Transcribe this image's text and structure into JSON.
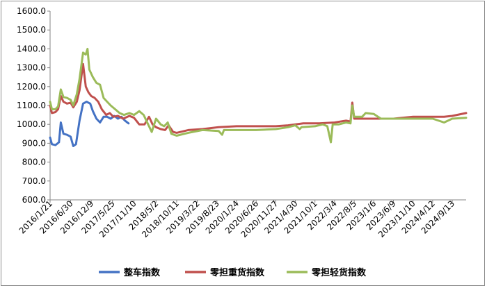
{
  "chart_data": {
    "type": "line",
    "title": "",
    "xlabel": "",
    "ylabel": "",
    "ylim": [
      600,
      1600
    ],
    "y_ticks": [
      "600.0",
      "700.0",
      "800.0",
      "900.0",
      "1000.0",
      "1100.0",
      "1200.0",
      "1300.0",
      "1400.0",
      "1500.0",
      "1600.0"
    ],
    "x_ticks": [
      "2016/1/21",
      "2016/6/30",
      "2016/12/9",
      "2017/5/25",
      "2017/11/10",
      "2018/5/2",
      "2018/10/11",
      "2019/3/22",
      "2019/8/23",
      "2020/1/24",
      "2020/6/26",
      "2020/11/27",
      "2021/4/30",
      "2021/10/1",
      "2022/3/4",
      "2022/8/5",
      "2023/1/6",
      "2023/6/9",
      "2023/11/10",
      "2024/4/12",
      "2024/9/13"
    ],
    "grid": false,
    "legend_position": "bottom",
    "x_domain": [
      "2016/1/21",
      "2024/12/31"
    ],
    "series": [
      {
        "name": "整车指数",
        "color": "#4472c4",
        "points": [
          [
            "2016/1/21",
            930
          ],
          [
            "2016/2/4",
            895
          ],
          [
            "2016/3/3",
            890
          ],
          [
            "2016/3/31",
            905
          ],
          [
            "2016/4/14",
            1010
          ],
          [
            "2016/5/5",
            950
          ],
          [
            "2016/6/2",
            945
          ],
          [
            "2016/6/30",
            935
          ],
          [
            "2016/7/21",
            885
          ],
          [
            "2016/8/11",
            895
          ],
          [
            "2016/9/8",
            1020
          ],
          [
            "2016/10/6",
            1110
          ],
          [
            "2016/11/3",
            1120
          ],
          [
            "2016/12/1",
            1110
          ],
          [
            "2016/12/22",
            1070
          ],
          [
            "2017/1/19",
            1030
          ],
          [
            "2017/2/16",
            1010
          ],
          [
            "2017/3/16",
            1040
          ],
          [
            "2017/4/13",
            1040
          ],
          [
            "2017/5/11",
            1030
          ],
          [
            "2017/6/8",
            1045
          ],
          [
            "2017/7/6",
            1030
          ],
          [
            "2017/8/3",
            1040
          ],
          [
            "2017/8/31",
            1020
          ],
          [
            "2017/9/28",
            1005
          ]
        ]
      },
      {
        "name": "零担重货指数",
        "color": "#c0504d",
        "points": [
          [
            "2016/1/21",
            1100
          ],
          [
            "2016/2/4",
            1060
          ],
          [
            "2016/3/3",
            1065
          ],
          [
            "2016/3/24",
            1080
          ],
          [
            "2016/4/14",
            1150
          ],
          [
            "2016/5/5",
            1120
          ],
          [
            "2016/6/2",
            1110
          ],
          [
            "2016/6/30",
            1115
          ],
          [
            "2016/7/21",
            1090
          ],
          [
            "2016/8/18",
            1120
          ],
          [
            "2016/9/8",
            1180
          ],
          [
            "2016/10/6",
            1320
          ],
          [
            "2016/10/27",
            1200
          ],
          [
            "2016/11/17",
            1170
          ],
          [
            "2016/12/9",
            1150
          ],
          [
            "2017/1/5",
            1140
          ],
          [
            "2017/2/2",
            1120
          ],
          [
            "2017/3/2",
            1080
          ],
          [
            "2017/4/6",
            1050
          ],
          [
            "2017/5/4",
            1060
          ],
          [
            "2017/6/1",
            1040
          ],
          [
            "2017/7/6",
            1045
          ],
          [
            "2017/8/17",
            1030
          ],
          [
            "2017/10/5",
            1045
          ],
          [
            "2017/11/10",
            1035
          ],
          [
            "2017/12/21",
            1000
          ],
          [
            "2018/2/1",
            1000
          ],
          [
            "2018/3/8",
            1040
          ],
          [
            "2018/4/5",
            1000
          ],
          [
            "2018/5/2",
            985
          ],
          [
            "2018/6/7",
            975
          ],
          [
            "2018/7/12",
            970
          ],
          [
            "2018/8/9",
            995
          ],
          [
            "2018/9/13",
            960
          ],
          [
            "2018/10/11",
            955
          ],
          [
            "2019/1/10",
            970
          ],
          [
            "2019/5/2",
            975
          ],
          [
            "2019/9/5",
            985
          ],
          [
            "2020/1/24",
            990
          ],
          [
            "2020/6/26",
            990
          ],
          [
            "2020/11/27",
            990
          ],
          [
            "2021/3/4",
            995
          ],
          [
            "2021/7/1",
            1005
          ],
          [
            "2021/11/4",
            1005
          ],
          [
            "2022/3/4",
            1010
          ],
          [
            "2022/6/2",
            1020
          ],
          [
            "2022/7/7",
            1015
          ],
          [
            "2022/7/21",
            1115
          ],
          [
            "2022/8/5",
            1030
          ],
          [
            "2022/11/3",
            1030
          ],
          [
            "2023/1/6",
            1030
          ],
          [
            "2023/6/9",
            1030
          ],
          [
            "2023/11/10",
            1040
          ],
          [
            "2024/4/12",
            1040
          ],
          [
            "2024/7/11",
            1040
          ],
          [
            "2024/9/13",
            1045
          ],
          [
            "2024/12/31",
            1060
          ]
        ]
      },
      {
        "name": "零担轻货指数",
        "color": "#9bbb59",
        "points": [
          [
            "2016/1/21",
            1120
          ],
          [
            "2016/2/4",
            1080
          ],
          [
            "2016/3/3",
            1080
          ],
          [
            "2016/3/24",
            1095
          ],
          [
            "2016/4/14",
            1185
          ],
          [
            "2016/5/5",
            1145
          ],
          [
            "2016/6/2",
            1140
          ],
          [
            "2016/6/30",
            1130
          ],
          [
            "2016/7/21",
            1100
          ],
          [
            "2016/8/18",
            1160
          ],
          [
            "2016/9/8",
            1240
          ],
          [
            "2016/10/6",
            1380
          ],
          [
            "2016/10/27",
            1370
          ],
          [
            "2016/11/10",
            1400
          ],
          [
            "2016/11/24",
            1290
          ],
          [
            "2016/12/22",
            1250
          ],
          [
            "2017/1/19",
            1220
          ],
          [
            "2017/2/16",
            1210
          ],
          [
            "2017/3/16",
            1140
          ],
          [
            "2017/4/13",
            1120
          ],
          [
            "2017/5/11",
            1100
          ],
          [
            "2017/6/15",
            1080
          ],
          [
            "2017/7/20",
            1060
          ],
          [
            "2017/8/24",
            1050
          ],
          [
            "2017/10/5",
            1060
          ],
          [
            "2017/11/10",
            1050
          ],
          [
            "2017/12/21",
            1070
          ],
          [
            "2018/1/25",
            1050
          ],
          [
            "2018/3/1",
            1000
          ],
          [
            "2018/3/29",
            960
          ],
          [
            "2018/5/2",
            1030
          ],
          [
            "2018/6/7",
            1000
          ],
          [
            "2018/7/5",
            990
          ],
          [
            "2018/8/2",
            1010
          ],
          [
            "2018/8/30",
            950
          ],
          [
            "2018/10/11",
            940
          ],
          [
            "2019/1/10",
            955
          ],
          [
            "2019/5/2",
            970
          ],
          [
            "2019/9/5",
            965
          ],
          [
            "2019/10/3",
            945
          ],
          [
            "2019/10/17",
            970
          ],
          [
            "2020/1/24",
            970
          ],
          [
            "2020/6/26",
            970
          ],
          [
            "2020/11/27",
            975
          ],
          [
            "2021/3/4",
            985
          ],
          [
            "2021/4/30",
            995
          ],
          [
            "2021/6/3",
            975
          ],
          [
            "2021/6/17",
            985
          ],
          [
            "2021/10/1",
            990
          ],
          [
            "2021/12/2",
            1000
          ],
          [
            "2022/1/6",
            990
          ],
          [
            "2022/2/3",
            905
          ],
          [
            "2022/2/17",
            1000
          ],
          [
            "2022/4/7",
            1000
          ],
          [
            "2022/6/2",
            1010
          ],
          [
            "2022/7/7",
            1005
          ],
          [
            "2022/7/21",
            1100
          ],
          [
            "2022/8/5",
            1040
          ],
          [
            "2022/10/6",
            1040
          ],
          [
            "2022/11/3",
            1060
          ],
          [
            "2023/1/6",
            1055
          ],
          [
            "2023/3/3",
            1030
          ],
          [
            "2023/6/9",
            1030
          ],
          [
            "2023/11/10",
            1030
          ],
          [
            "2024/4/12",
            1030
          ],
          [
            "2024/7/11",
            1010
          ],
          [
            "2024/9/13",
            1030
          ],
          [
            "2024/12/31",
            1035
          ]
        ]
      }
    ]
  }
}
